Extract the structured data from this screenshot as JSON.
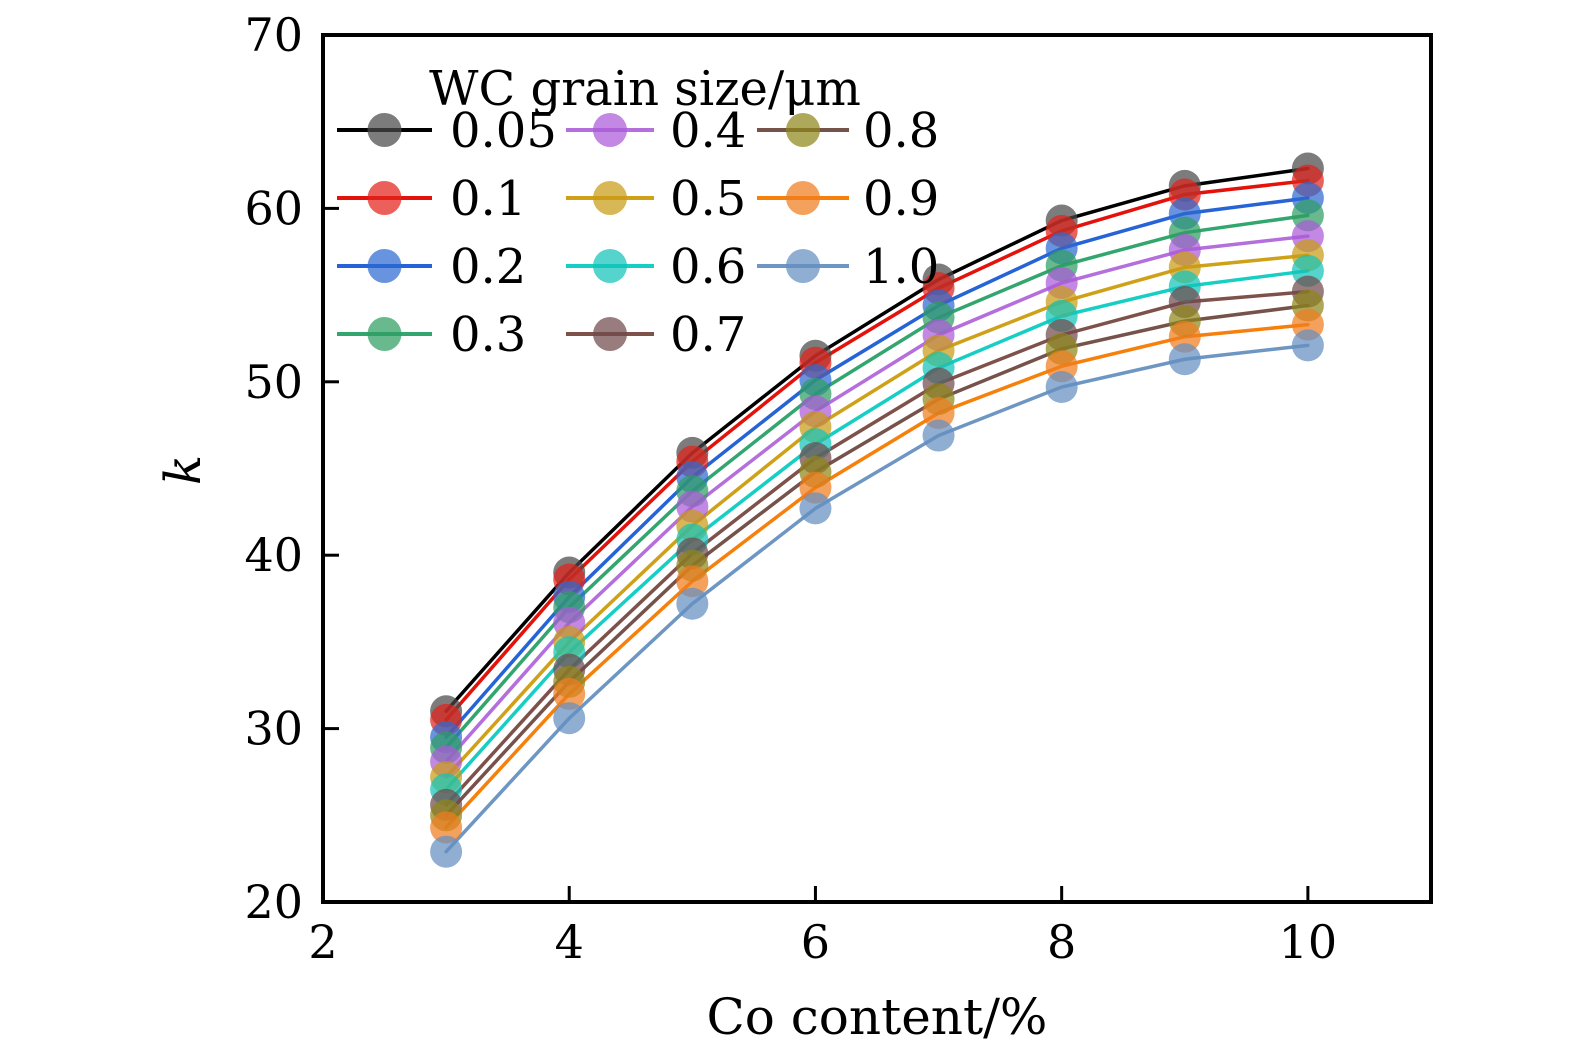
{
  "figure": {
    "background": "#ffffff"
  },
  "chart_data": {
    "type": "line",
    "title": "",
    "xlabel": "Co content/%",
    "ylabel": "k",
    "xlim": [
      2,
      11
    ],
    "ylim": [
      20,
      70
    ],
    "xticks": [
      2,
      4,
      6,
      8,
      10
    ],
    "yticks": [
      20,
      30,
      40,
      50,
      60,
      70
    ],
    "grid": false,
    "x": [
      3,
      4,
      5,
      6,
      7,
      8,
      9,
      10
    ],
    "legend": {
      "title": "WC grain size/μm",
      "position": "upper-left-inside",
      "columns": 3,
      "entries": [
        "0.05",
        "0.1",
        "0.2",
        "0.3",
        "0.4",
        "0.5",
        "0.6",
        "0.7",
        "0.8",
        "0.9",
        "1.0"
      ]
    },
    "series": [
      {
        "name": "0.05",
        "line_color": "#000000",
        "marker_color": "#4a4a4a",
        "values": [
          31.0,
          39.0,
          45.9,
          51.5,
          55.9,
          59.3,
          61.3,
          62.3
        ]
      },
      {
        "name": "0.1",
        "line_color": "#e3120b",
        "marker_color": "#e3231a",
        "values": [
          30.5,
          38.6,
          45.4,
          51.1,
          55.4,
          58.7,
          60.8,
          61.6
        ]
      },
      {
        "name": "0.2",
        "line_color": "#2563d6",
        "marker_color": "#2e6ad1",
        "values": [
          29.5,
          37.6,
          44.5,
          50.1,
          54.4,
          57.7,
          59.7,
          60.6
        ]
      },
      {
        "name": "0.3",
        "line_color": "#33a56e",
        "marker_color": "#2f9e62",
        "values": [
          28.9,
          37.0,
          43.7,
          49.3,
          53.7,
          56.7,
          58.6,
          59.6
        ]
      },
      {
        "name": "0.4",
        "line_color": "#b46fdd",
        "marker_color": "#ab5ad8",
        "values": [
          28.1,
          36.1,
          42.8,
          48.3,
          52.7,
          55.7,
          57.6,
          58.4
        ]
      },
      {
        "name": "0.5",
        "line_color": "#cfa118",
        "marker_color": "#c99b16",
        "values": [
          27.2,
          35.0,
          41.7,
          47.4,
          51.8,
          54.6,
          56.6,
          57.3
        ]
      },
      {
        "name": "0.6",
        "line_color": "#17cec4",
        "marker_color": "#12c4ba",
        "values": [
          26.5,
          34.4,
          40.9,
          46.4,
          50.8,
          53.8,
          55.5,
          56.4
        ]
      },
      {
        "name": "0.7",
        "line_color": "#7e524b",
        "marker_color": "#70494c",
        "values": [
          25.6,
          33.4,
          40.1,
          45.6,
          49.9,
          52.7,
          54.6,
          55.2
        ]
      },
      {
        "name": "0.8",
        "line_color": "#75524a",
        "marker_color": "#8f861a",
        "values": [
          25.0,
          32.7,
          39.4,
          44.8,
          49.0,
          51.9,
          53.5,
          54.4
        ]
      },
      {
        "name": "0.9",
        "line_color": "#f5810c",
        "marker_color": "#f07d1e",
        "values": [
          24.3,
          32.0,
          38.5,
          43.9,
          48.2,
          50.9,
          52.6,
          53.3
        ]
      },
      {
        "name": "1.0",
        "line_color": "#6e96c3",
        "marker_color": "#648fc0",
        "values": [
          22.9,
          30.6,
          37.2,
          42.7,
          46.9,
          49.7,
          51.3,
          52.1
        ]
      }
    ]
  }
}
